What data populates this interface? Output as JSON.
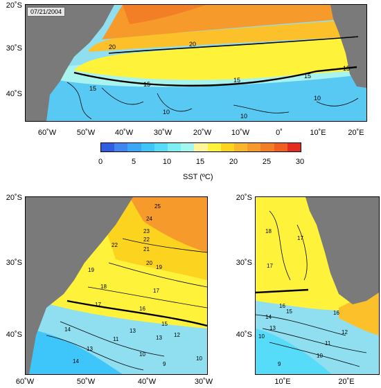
{
  "date": "07/21/2004",
  "colors": {
    "land": "#7a7a7a",
    "front_line": "#000000",
    "colorbar": [
      "#2f5fe0",
      "#3f86f0",
      "#3aa8f5",
      "#3ec6fa",
      "#56dbf8",
      "#7deef4",
      "#a4f6f0",
      "#fff59a",
      "#fff23a",
      "#fcd41f",
      "#f9b62a",
      "#f69a2c",
      "#f27e25",
      "#ef5f1e",
      "#e52a20"
    ]
  },
  "colorbar": {
    "ticks": [
      "0",
      "5",
      "10",
      "15",
      "20",
      "25",
      "30"
    ],
    "title": "SST (ºC)"
  },
  "top_map": {
    "y_ticks": [
      "20˚S",
      "30˚S",
      "40˚S"
    ],
    "x_ticks": [
      "60˚W",
      "50˚W",
      "40˚W",
      "30˚W",
      "20˚W",
      "10˚W",
      "0˚",
      "10˚E",
      "20˚E"
    ],
    "contour_labels": [
      "20",
      "20",
      "15",
      "15",
      "15",
      "15",
      "15",
      "10",
      "10",
      "10"
    ]
  },
  "bottom_left_map": {
    "y_ticks": [
      "20˚S",
      "30˚S",
      "40˚S"
    ],
    "x_ticks": [
      "60˚W",
      "50˚W",
      "40˚W",
      "30˚W"
    ],
    "contour_labels": [
      "25",
      "24",
      "23",
      "22",
      "22",
      "21",
      "20",
      "19",
      "19",
      "18",
      "17",
      "17",
      "16",
      "15",
      "14",
      "13",
      "12",
      "11",
      "10",
      "10",
      "9",
      "13",
      "13",
      "14"
    ]
  },
  "bottom_right_map": {
    "y_ticks": [
      "20˚S",
      "30˚S",
      "40˚S"
    ],
    "x_ticks": [
      "10˚E",
      "20˚E"
    ],
    "contour_labels": [
      "18",
      "17",
      "17",
      "16",
      "16",
      "15",
      "14",
      "13",
      "12",
      "11",
      "10",
      "10",
      "9"
    ]
  }
}
